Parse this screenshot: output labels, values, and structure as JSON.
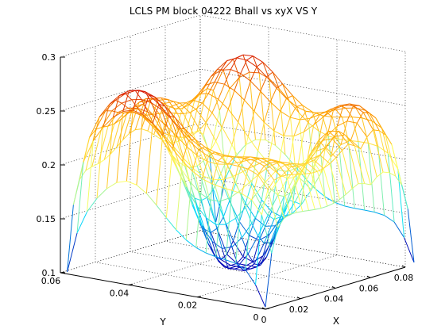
{
  "chart_data": {
    "type": "surface-mesh",
    "title": "LCLS PM block 04222 Bhall vs xyX VS Y",
    "xlabel": "X",
    "ylabel": "Y",
    "zlabel": "",
    "xlim": [
      0,
      0.08
    ],
    "ylim": [
      0,
      0.06
    ],
    "zlim": [
      0.1,
      0.3
    ],
    "xticks": [
      "0",
      "0.02",
      "0.04",
      "0.06",
      "0.08"
    ],
    "yticks": [
      "0",
      "0.02",
      "0.04",
      "0.06"
    ],
    "zticks": [
      "0.1",
      "0.15",
      "0.2",
      "0.25",
      "0.3"
    ],
    "grid": true,
    "colormap": "jet",
    "grid_size": {
      "nx": 24,
      "ny": 20
    },
    "surface_model": {
      "base": 0.246,
      "edge_drop": 0.11,
      "well_center": [
        0.043,
        0.029
      ],
      "well_depth": 0.145,
      "well_sigma": [
        0.014,
        0.011
      ],
      "x_range_data": [
        0.0,
        0.085
      ],
      "y_range_data": [
        0.0,
        0.058
      ],
      "peaks": [
        {
          "x": 0.003,
          "y": 0.04,
          "height": 0.06
        },
        {
          "x": 0.082,
          "y": 0.044,
          "height": 0.055
        },
        {
          "x": 0.04,
          "y": 0.056,
          "height": 0.04
        },
        {
          "x": 0.06,
          "y": 0.012,
          "height": 0.035
        }
      ],
      "notch": {
        "x": 0.06,
        "y": 0.018,
        "depth": 0.05
      }
    },
    "colors": {
      "low": "#0000b4",
      "mid_low": "#00e0ff",
      "mid": "#ffff60",
      "mid_high": "#ffa000",
      "high": "#d00000"
    }
  }
}
